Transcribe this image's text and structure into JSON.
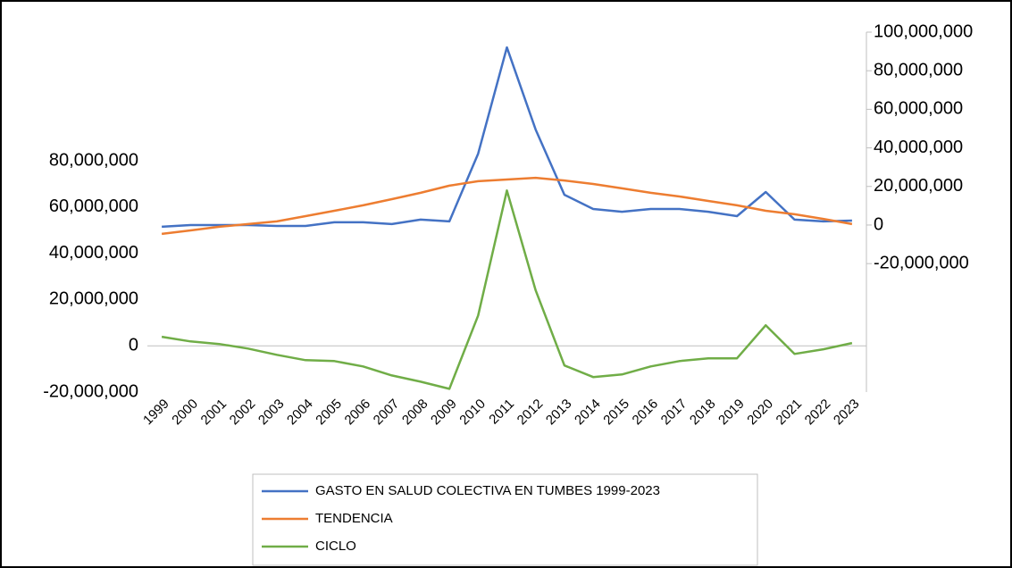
{
  "chart_data": {
    "type": "line",
    "categories": [
      "1999",
      "2000",
      "2001",
      "2002",
      "2003",
      "2004",
      "2005",
      "2006",
      "2007",
      "2008",
      "2009",
      "2010",
      "2011",
      "2012",
      "2013",
      "2014",
      "2015",
      "2016",
      "2017",
      "2018",
      "2019",
      "2020",
      "2021",
      "2022",
      "2023"
    ],
    "series": [
      {
        "name": "GASTO EN SALUD COLECTIVA EN TUMBES 1999-2023",
        "color": "#4472c4",
        "axis": "y2",
        "values": [
          -900000,
          0,
          0,
          0,
          -500000,
          -500000,
          1400000,
          1400000,
          500000,
          2800000,
          1900000,
          37000000,
          92100000,
          49500000,
          15700000,
          8300000,
          6900000,
          8300000,
          8300000,
          6900000,
          4600000,
          17100000,
          2800000,
          1900000,
          2300000
        ]
      },
      {
        "name": "TENDENCIA",
        "color": "#ed7d31",
        "axis": "y2",
        "values": [
          -4600000,
          -2800000,
          -900000,
          500000,
          1900000,
          4600000,
          7400000,
          10200000,
          13400000,
          16700000,
          20400000,
          22700000,
          23600000,
          24500000,
          23100000,
          21300000,
          19000000,
          16700000,
          14800000,
          12500000,
          10200000,
          7400000,
          5600000,
          3200000,
          500000
        ]
      },
      {
        "name": "CICLO",
        "color": "#70ad47",
        "values": [
          3900000,
          1900000,
          800000,
          -1200000,
          -3900000,
          -6200000,
          -6600000,
          -8900000,
          -12800000,
          -15500000,
          -18600000,
          13100000,
          67200000,
          24000000,
          -8500000,
          -13500000,
          -12400000,
          -8900000,
          -6600000,
          -5400000,
          -5400000,
          8900000,
          -3500000,
          -1500000,
          1200000
        ]
      }
    ],
    "ylim": [
      -20000000,
      135700000
    ],
    "yticks": [
      {
        "value": -20000000,
        "label": "-20,000,000"
      },
      0,
      {
        "value": 20000000,
        "label": "20,000,000"
      },
      {
        "value": 40000000,
        "label": "40,000,000"
      },
      {
        "value": 60000000,
        "label": "60,000,000"
      },
      {
        "value": 80000000,
        "label": "80,000,000"
      }
    ],
    "y2lim": [
      -86600000,
      100000000
    ],
    "y2ticks": [
      {
        "value": -20000000,
        "label": "-20,000,000"
      },
      0,
      {
        "value": 20000000,
        "label": "20,000,000"
      },
      {
        "value": 40000000,
        "label": "40,000,000"
      },
      {
        "value": 60000000,
        "label": "60,000,000"
      },
      {
        "value": 80000000,
        "label": "80,000,000"
      },
      {
        "value": 100000000,
        "label": "100,000,000"
      }
    ],
    "legend": "bottom"
  }
}
